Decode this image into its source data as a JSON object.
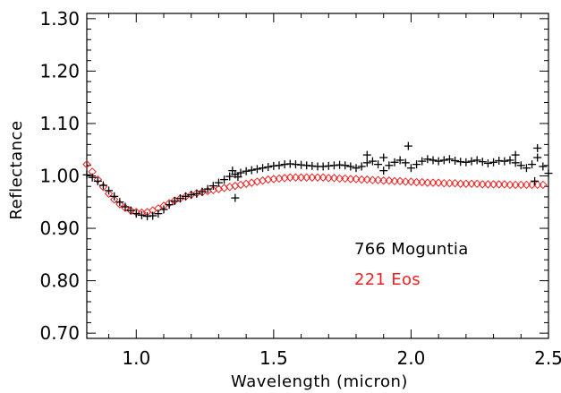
{
  "chart_data": {
    "type": "scatter",
    "xlabel": "Wavelength (micron)",
    "ylabel": "Reflectance",
    "xlim": [
      0.82,
      2.5
    ],
    "ylim": [
      0.69,
      1.31
    ],
    "x_ticks": [
      "1.0",
      "1.5",
      "2.0",
      "2.5"
    ],
    "x_tick_values": [
      1.0,
      1.5,
      2.0,
      2.5
    ],
    "y_ticks": [
      "0.70",
      "0.80",
      "0.90",
      "1.00",
      "1.10",
      "1.20",
      "1.30"
    ],
    "y_tick_values": [
      0.7,
      0.8,
      0.9,
      1.0,
      1.1,
      1.2,
      1.3
    ],
    "legend_position": "lower-right",
    "series": [
      {
        "name": "766 Moguntia",
        "marker": "plus",
        "color": "#000000",
        "x": [
          0.82,
          0.84,
          0.86,
          0.88,
          0.9,
          0.92,
          0.94,
          0.96,
          0.98,
          1.0,
          1.02,
          1.04,
          1.06,
          1.08,
          1.1,
          1.12,
          1.14,
          1.16,
          1.18,
          1.2,
          1.22,
          1.24,
          1.26,
          1.28,
          1.3,
          1.32,
          1.34,
          1.36,
          1.38,
          1.4,
          1.42,
          1.44,
          1.46,
          1.48,
          1.5,
          1.52,
          1.54,
          1.56,
          1.58,
          1.6,
          1.62,
          1.64,
          1.66,
          1.68,
          1.7,
          1.72,
          1.74,
          1.76,
          1.78,
          1.8,
          1.82,
          1.84,
          1.86,
          1.88,
          1.9,
          1.92,
          1.94,
          1.96,
          1.98,
          2.0,
          2.02,
          2.04,
          2.06,
          2.08,
          2.1,
          2.12,
          2.14,
          2.16,
          2.18,
          2.2,
          2.22,
          2.24,
          2.26,
          2.28,
          2.3,
          2.32,
          2.34,
          2.36,
          2.38,
          2.4,
          2.42,
          2.44,
          2.46,
          2.48,
          2.5,
          1.36,
          1.37,
          1.35,
          1.99,
          2.46,
          2.38,
          1.9,
          1.84,
          2.45
        ],
        "y": [
          1.002,
          0.997,
          0.99,
          0.982,
          0.972,
          0.961,
          0.95,
          0.941,
          0.934,
          0.928,
          0.925,
          0.923,
          0.924,
          0.928,
          0.936,
          0.945,
          0.952,
          0.957,
          0.961,
          0.964,
          0.966,
          0.97,
          0.975,
          0.981,
          0.987,
          0.993,
          0.999,
          1.003,
          1.006,
          1.009,
          1.011,
          1.013,
          1.015,
          1.017,
          1.019,
          1.02,
          1.022,
          1.023,
          1.022,
          1.021,
          1.02,
          1.019,
          1.018,
          1.018,
          1.019,
          1.02,
          1.021,
          1.02,
          1.018,
          1.015,
          1.018,
          1.025,
          1.028,
          1.022,
          1.01,
          1.02,
          1.026,
          1.03,
          1.025,
          1.015,
          1.022,
          1.028,
          1.032,
          1.03,
          1.028,
          1.03,
          1.032,
          1.029,
          1.027,
          1.026,
          1.028,
          1.03,
          1.027,
          1.024,
          1.026,
          1.029,
          1.028,
          1.03,
          1.025,
          1.02,
          1.015,
          1.022,
          1.035,
          1.018,
          1.005,
          0.958,
          0.998,
          1.01,
          1.057,
          1.053,
          1.04,
          1.035,
          1.04,
          0.99
        ]
      },
      {
        "name": "221 Eos",
        "marker": "diamond",
        "color": "#ee2222",
        "x": [
          0.82,
          0.84,
          0.86,
          0.88,
          0.9,
          0.92,
          0.94,
          0.96,
          0.98,
          1.0,
          1.02,
          1.04,
          1.06,
          1.08,
          1.1,
          1.12,
          1.14,
          1.16,
          1.18,
          1.2,
          1.22,
          1.24,
          1.26,
          1.28,
          1.3,
          1.32,
          1.34,
          1.36,
          1.38,
          1.4,
          1.42,
          1.44,
          1.46,
          1.48,
          1.5,
          1.52,
          1.54,
          1.56,
          1.58,
          1.6,
          1.62,
          1.64,
          1.66,
          1.68,
          1.7,
          1.72,
          1.74,
          1.76,
          1.78,
          1.8,
          1.82,
          1.84,
          1.86,
          1.88,
          1.9,
          1.92,
          1.94,
          1.96,
          1.98,
          2.0,
          2.02,
          2.04,
          2.06,
          2.08,
          2.1,
          2.12,
          2.14,
          2.16,
          2.18,
          2.2,
          2.22,
          2.24,
          2.26,
          2.28,
          2.3,
          2.32,
          2.34,
          2.36,
          2.38,
          2.4,
          2.42,
          2.44,
          2.46,
          2.48
        ],
        "y": [
          1.022,
          1.008,
          0.993,
          0.979,
          0.966,
          0.955,
          0.946,
          0.939,
          0.934,
          0.931,
          0.93,
          0.931,
          0.934,
          0.938,
          0.943,
          0.948,
          0.953,
          0.957,
          0.961,
          0.964,
          0.967,
          0.969,
          0.971,
          0.973,
          0.975,
          0.977,
          0.979,
          0.981,
          0.983,
          0.985,
          0.987,
          0.989,
          0.991,
          0.993,
          0.994,
          0.995,
          0.996,
          0.997,
          0.997,
          0.997,
          0.997,
          0.997,
          0.997,
          0.997,
          0.996,
          0.996,
          0.995,
          0.995,
          0.994,
          0.994,
          0.993,
          0.993,
          0.992,
          0.992,
          0.991,
          0.991,
          0.99,
          0.99,
          0.989,
          0.989,
          0.988,
          0.988,
          0.987,
          0.987,
          0.987,
          0.986,
          0.986,
          0.986,
          0.985,
          0.985,
          0.985,
          0.985,
          0.984,
          0.984,
          0.984,
          0.984,
          0.984,
          0.983,
          0.983,
          0.983,
          0.983,
          0.983,
          0.983,
          0.983
        ]
      }
    ]
  }
}
